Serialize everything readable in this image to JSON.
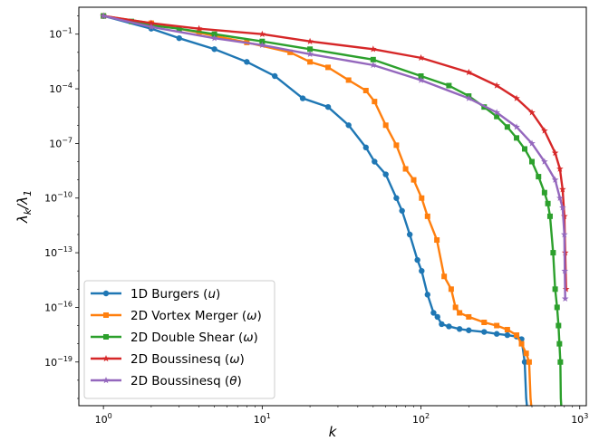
{
  "chart_data": {
    "type": "line",
    "title": "",
    "xlabel": "k",
    "ylabel": "λ_k/λ_1",
    "xscale": "log",
    "yscale": "log",
    "xlim": [
      0.7,
      1100
    ],
    "ylim": [
      4e-22,
      3
    ],
    "xticks": [
      {
        "value": 1,
        "base": "10",
        "exp": "0"
      },
      {
        "value": 10,
        "base": "10",
        "exp": "1"
      },
      {
        "value": 100,
        "base": "10",
        "exp": "2"
      },
      {
        "value": 1000,
        "base": "10",
        "exp": "3"
      }
    ],
    "yticks": [
      {
        "value": 0.1,
        "base": "10",
        "exp": "−1"
      },
      {
        "value": 0.0001,
        "base": "10",
        "exp": "−4"
      },
      {
        "value": 1e-07,
        "base": "10",
        "exp": "−7"
      },
      {
        "value": 1e-10,
        "base": "10",
        "exp": "−10"
      },
      {
        "value": 1e-13,
        "base": "10",
        "exp": "−13"
      },
      {
        "value": 1e-16,
        "base": "10",
        "exp": "−16"
      },
      {
        "value": 1e-19,
        "base": "10",
        "exp": "−19"
      }
    ],
    "legend_position": "lower-left",
    "grid": false,
    "series": [
      {
        "name": "1D Burgers (u)",
        "color": "#1f77b4",
        "marker": "circle",
        "points": [
          [
            1,
            1
          ],
          [
            2,
            0.2
          ],
          [
            3,
            0.06
          ],
          [
            5,
            0.015
          ],
          [
            8,
            0.003
          ],
          [
            12,
            0.0005
          ],
          [
            18,
            3e-05
          ],
          [
            26,
            1e-05
          ],
          [
            35,
            1e-06
          ],
          [
            45,
            6e-08
          ],
          [
            51,
            1e-08
          ],
          [
            60,
            2e-09
          ],
          [
            70,
            1e-10
          ],
          [
            76,
            2e-11
          ],
          [
            85,
            1e-12
          ],
          [
            95,
            4e-14
          ],
          [
            101,
            1e-14
          ],
          [
            110,
            5e-16
          ],
          [
            120,
            5e-17
          ],
          [
            127,
            3e-17
          ],
          [
            135,
            1.2e-17
          ],
          [
            150,
            9e-18
          ],
          [
            175,
            6.5e-18
          ],
          [
            200,
            5.5e-18
          ],
          [
            250,
            4.5e-18
          ],
          [
            300,
            3.5e-18
          ],
          [
            350,
            3e-18
          ],
          [
            400,
            2.5e-18
          ],
          [
            430,
            1.8e-18
          ],
          [
            450,
            1e-19
          ],
          [
            460,
            1e-21
          ],
          [
            465,
            4e-22
          ]
        ]
      },
      {
        "name": "2D Vortex Merger (ω)",
        "color": "#ff7f0e",
        "marker": "square",
        "points": [
          [
            1,
            1
          ],
          [
            2,
            0.4
          ],
          [
            4,
            0.12
          ],
          [
            8,
            0.035
          ],
          [
            15,
            0.01
          ],
          [
            20,
            0.003
          ],
          [
            26,
            0.0015
          ],
          [
            35,
            0.0003
          ],
          [
            45,
            8e-05
          ],
          [
            51,
            2e-05
          ],
          [
            60,
            1e-06
          ],
          [
            70,
            8e-08
          ],
          [
            80,
            4e-09
          ],
          [
            90,
            1e-09
          ],
          [
            101,
            1e-10
          ],
          [
            110,
            1e-11
          ],
          [
            126,
            5e-13
          ],
          [
            140,
            5e-15
          ],
          [
            155,
            1e-15
          ],
          [
            165,
            1e-16
          ],
          [
            175,
            5e-17
          ],
          [
            200,
            3e-17
          ],
          [
            250,
            1.5e-17
          ],
          [
            300,
            1e-17
          ],
          [
            350,
            6e-18
          ],
          [
            400,
            3e-18
          ],
          [
            430,
            1e-18
          ],
          [
            460,
            3e-19
          ],
          [
            480,
            1e-19
          ],
          [
            490,
            1e-21
          ],
          [
            495,
            4e-22
          ]
        ]
      },
      {
        "name": "2D Double Shear (ω)",
        "color": "#2ca02c",
        "marker": "square",
        "points": [
          [
            1,
            1
          ],
          [
            1.5,
            0.5
          ],
          [
            2,
            0.3
          ],
          [
            3,
            0.2
          ],
          [
            5,
            0.1
          ],
          [
            10,
            0.04
          ],
          [
            20,
            0.015
          ],
          [
            50,
            0.004
          ],
          [
            100,
            0.0005
          ],
          [
            150,
            0.00015
          ],
          [
            200,
            4e-05
          ],
          [
            250,
            1e-05
          ],
          [
            300,
            3e-06
          ],
          [
            350,
            8e-07
          ],
          [
            400,
            2e-07
          ],
          [
            450,
            5e-08
          ],
          [
            500,
            1e-08
          ],
          [
            550,
            1.5e-09
          ],
          [
            600,
            2e-10
          ],
          [
            630,
            5e-11
          ],
          [
            650,
            1e-11
          ],
          [
            680,
            1e-13
          ],
          [
            700,
            1e-15
          ],
          [
            720,
            1e-16
          ],
          [
            735,
            1e-17
          ],
          [
            745,
            1e-18
          ],
          [
            755,
            1e-19
          ],
          [
            760,
            1e-21
          ],
          [
            765,
            4e-22
          ]
        ]
      },
      {
        "name": "2D Boussinesq (ω)",
        "color": "#d62728",
        "marker": "star",
        "points": [
          [
            1,
            1
          ],
          [
            2,
            0.4
          ],
          [
            4,
            0.2
          ],
          [
            10,
            0.1
          ],
          [
            20,
            0.04
          ],
          [
            50,
            0.015
          ],
          [
            100,
            0.005
          ],
          [
            200,
            0.0008
          ],
          [
            300,
            0.00015
          ],
          [
            400,
            3e-05
          ],
          [
            500,
            5e-06
          ],
          [
            600,
            5e-07
          ],
          [
            700,
            3e-08
          ],
          [
            750,
            4e-09
          ],
          [
            780,
            3e-10
          ],
          [
            800,
            1e-11
          ],
          [
            810,
            1e-13
          ],
          [
            820,
            1e-15
          ]
        ]
      },
      {
        "name": "2D Boussinesq (θ)",
        "color": "#9467bd",
        "marker": "star",
        "points": [
          [
            1,
            1
          ],
          [
            2,
            0.25
          ],
          [
            5,
            0.06
          ],
          [
            10,
            0.025
          ],
          [
            20,
            0.008
          ],
          [
            50,
            0.002
          ],
          [
            100,
            0.0003
          ],
          [
            200,
            3e-05
          ],
          [
            300,
            5e-06
          ],
          [
            400,
            8e-07
          ],
          [
            500,
            1e-07
          ],
          [
            600,
            1e-08
          ],
          [
            700,
            1e-09
          ],
          [
            750,
            1e-10
          ],
          [
            780,
            3e-11
          ],
          [
            800,
            1e-12
          ],
          [
            805,
            1e-14
          ],
          [
            810,
            3e-16
          ]
        ]
      }
    ]
  }
}
